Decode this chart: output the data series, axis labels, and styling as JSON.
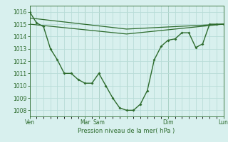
{
  "title": "",
  "xlabel": "Pression niveau de la mer( hPa )",
  "ylabel": "",
  "bg_color": "#d8f0ee",
  "grid_color": "#b8dcd8",
  "line_color": "#2d6b2d",
  "ylim": [
    1007.5,
    1016.5
  ],
  "yticks": [
    1008,
    1009,
    1010,
    1011,
    1012,
    1013,
    1014,
    1015,
    1016
  ],
  "day_positions": [
    0,
    4,
    5,
    7,
    10,
    14
  ],
  "day_labels": [
    "Ven",
    "Mar",
    "Sam",
    "",
    "Dim",
    "Lun"
  ],
  "line1_x": [
    0,
    0.5,
    1,
    1.5,
    2,
    2.5,
    3,
    3.5,
    4,
    4.5,
    5,
    5.5,
    6,
    6.5,
    7,
    7.5,
    8,
    8.5,
    9,
    9.5,
    10,
    10.5,
    11,
    11.5,
    12,
    12.5,
    13,
    13.5,
    14
  ],
  "line1_y": [
    1016.0,
    1015.1,
    1014.8,
    1013.0,
    1012.1,
    1011.0,
    1011.0,
    1010.5,
    1010.2,
    1010.2,
    1011.0,
    1010.0,
    1009.0,
    1008.2,
    1008.0,
    1008.0,
    1008.5,
    1009.6,
    1012.1,
    1013.2,
    1013.7,
    1013.8,
    1014.3,
    1014.3,
    1013.1,
    1013.4,
    1015.0,
    1015.0,
    1015.0
  ],
  "line2_x": [
    0,
    7,
    14
  ],
  "line2_y": [
    1015.0,
    1014.2,
    1015.0
  ],
  "line3_x": [
    0,
    7,
    14
  ],
  "line3_y": [
    1015.5,
    1014.6,
    1015.0
  ],
  "xlim": [
    0,
    14
  ]
}
